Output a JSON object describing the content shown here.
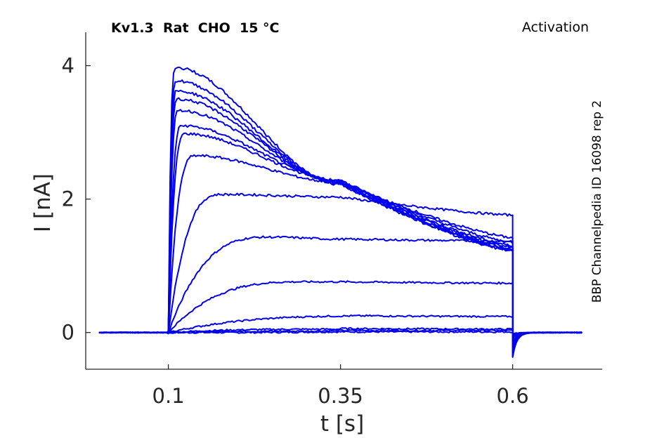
{
  "chart_data": {
    "type": "line",
    "title": "Kv1.3  Rat  CHO  15 °C",
    "panel_label": "Activation",
    "side_label": "BBP Channelpedia ID 16098 rep 2",
    "xlabel": "t [s]",
    "ylabel": "I [nA]",
    "xlim": [
      -0.02,
      0.73
    ],
    "ylim": [
      -0.55,
      4.5
    ],
    "xticks": [
      0.1,
      0.35,
      0.6
    ],
    "xtick_labels": [
      "0.1",
      "0.35",
      "0.6"
    ],
    "yticks": [
      0,
      2,
      4
    ],
    "ytick_labels": [
      "0",
      "2",
      "4"
    ],
    "grid": false,
    "line_color": "#0000ee",
    "protocol": {
      "baseline_start": 0.0,
      "step_on": 0.1,
      "step_off": 0.6,
      "end": 0.7
    },
    "series": [
      {
        "peak": 0.0,
        "peak_time": 0.2,
        "mid": 0.01,
        "end": 0.01,
        "tail": -0.02
      },
      {
        "peak": 0.02,
        "peak_time": 0.3,
        "mid": 0.03,
        "end": 0.03,
        "tail": -0.04
      },
      {
        "peak": 0.05,
        "peak_time": 0.35,
        "mid": 0.06,
        "end": 0.05,
        "tail": -0.06
      },
      {
        "peak": 0.25,
        "peak_time": 0.42,
        "mid": 0.25,
        "end": 0.24,
        "tail": -0.1
      },
      {
        "peak": 0.76,
        "peak_time": 0.3,
        "mid": 0.76,
        "end": 0.74,
        "tail": -0.15
      },
      {
        "peak": 1.43,
        "peak_time": 0.25,
        "mid": 1.4,
        "end": 1.37,
        "tail": -0.2
      },
      {
        "peak": 2.07,
        "peak_time": 0.18,
        "mid": 2.03,
        "end": 1.76,
        "tail": -0.25
      },
      {
        "peak": 2.65,
        "peak_time": 0.14,
        "mid": 2.25,
        "end": 1.42,
        "tail": -0.28
      },
      {
        "peak": 2.98,
        "peak_time": 0.125,
        "mid": 2.28,
        "end": 1.35,
        "tail": -0.3
      },
      {
        "peak": 3.1,
        "peak_time": 0.12,
        "mid": 2.28,
        "end": 1.3,
        "tail": -0.32
      },
      {
        "peak": 3.33,
        "peak_time": 0.115,
        "mid": 2.26,
        "end": 1.28,
        "tail": -0.33
      },
      {
        "peak": 3.5,
        "peak_time": 0.113,
        "mid": 2.25,
        "end": 1.25,
        "tail": -0.34
      },
      {
        "peak": 3.62,
        "peak_time": 0.112,
        "mid": 2.24,
        "end": 1.24,
        "tail": -0.35
      },
      {
        "peak": 3.77,
        "peak_time": 0.111,
        "mid": 2.23,
        "end": 1.23,
        "tail": -0.36
      },
      {
        "peak": 3.97,
        "peak_time": 0.11,
        "mid": 2.22,
        "end": 1.22,
        "tail": -0.37
      }
    ]
  }
}
